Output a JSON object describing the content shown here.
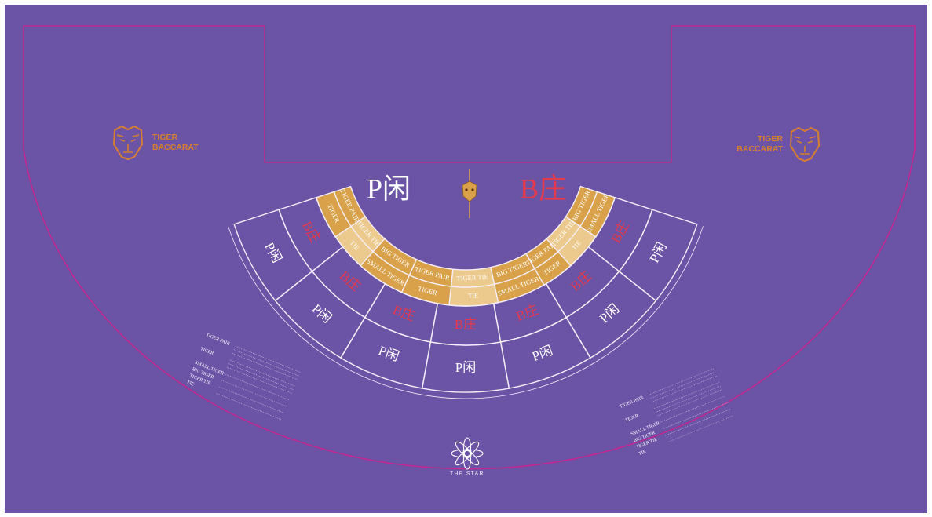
{
  "colors": {
    "felt": "#6b53a6",
    "border_line": "#c0288f",
    "gold": "#d9a24a",
    "gold_light": "#ecc98c",
    "white_line": "#f4eef8",
    "banker_red": "#e43a4c",
    "player_white": "#ffffff",
    "logo_orange": "#d77f2f"
  },
  "brand": {
    "left_logo_text_1": "TIGER",
    "left_logo_text_2": "BACCARAT",
    "right_logo_text_1": "TIGER",
    "right_logo_text_2": "BACCARAT",
    "casino_name": "THE STAR",
    "tiger_icon": "tiger-head-icon",
    "star_icon": "the-star-logo-icon"
  },
  "center_labels": {
    "player": "P闲",
    "banker": "B庄"
  },
  "side_bets": {
    "tiger_pair": "TIGER PAIR",
    "tiger": "TIGER",
    "tiger_tie": "TIGER TIE",
    "tie": "TIE",
    "big_tiger": "BIG TIGER",
    "small_tiger": "SMALL TIGER"
  },
  "seat_bets": {
    "banker": "B庄",
    "player": "P闲"
  },
  "paytable_left": {
    "headings": [
      "TIGER PAIR",
      "TIGER",
      "SMALL TIGER",
      "BIG TIGER",
      "TIGER TIE",
      "TIE"
    ]
  },
  "paytable_right": {
    "headings": [
      "TIGER PAIR",
      "TIGER",
      "SMALL TIGER",
      "BIG TIGER",
      "TIGER TIE",
      "TIE"
    ]
  }
}
